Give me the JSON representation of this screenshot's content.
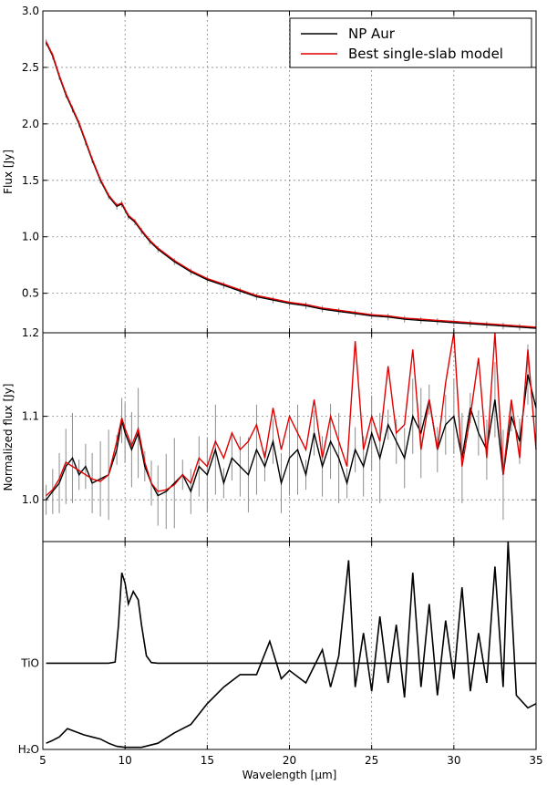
{
  "colors": {
    "observed": "#000000",
    "model": "#e00000",
    "errorbar": "#8c8c8c",
    "grid": "#888888"
  },
  "x_axis": {
    "label": "Wavelength [μm]",
    "ticks": [
      5,
      10,
      15,
      20,
      25,
      30,
      35
    ],
    "range": [
      5,
      35
    ]
  },
  "chart_data": [
    {
      "type": "line",
      "ylabel": "Flux [Jy]",
      "ylim": [
        0.15,
        3.0
      ],
      "yticks": [
        0.5,
        1.0,
        1.5,
        2.0,
        2.5,
        3.0
      ],
      "ytick_labels": [
        "0.5",
        "1.0",
        "1.5",
        "2.0",
        "2.5",
        "3.0"
      ],
      "legend": {
        "placement": "top-right",
        "entries": [
          "NP Aur",
          "Best single-slab model"
        ]
      },
      "grid": true,
      "series": [
        {
          "name": "NP Aur",
          "color": "#000000",
          "x": [
            5.2,
            5.6,
            6.0,
            6.4,
            6.8,
            7.2,
            7.6,
            8.0,
            8.5,
            9.0,
            9.5,
            9.8,
            10.2,
            10.6,
            11.0,
            11.5,
            12,
            13,
            14,
            15,
            16,
            17,
            18,
            19,
            20,
            21,
            22,
            23,
            24,
            25,
            26,
            27,
            28,
            29,
            30,
            31,
            32,
            33,
            34,
            35
          ],
          "y": [
            2.72,
            2.6,
            2.42,
            2.26,
            2.13,
            2.0,
            1.84,
            1.68,
            1.5,
            1.36,
            1.27,
            1.29,
            1.18,
            1.13,
            1.05,
            0.96,
            0.89,
            0.78,
            0.69,
            0.62,
            0.57,
            0.52,
            0.47,
            0.44,
            0.41,
            0.39,
            0.36,
            0.34,
            0.32,
            0.3,
            0.29,
            0.27,
            0.26,
            0.25,
            0.24,
            0.23,
            0.22,
            0.21,
            0.2,
            0.19
          ]
        },
        {
          "name": "Best single-slab model",
          "color": "#e00000",
          "x": [
            5.2,
            5.6,
            6.0,
            6.4,
            6.8,
            7.2,
            7.6,
            8.0,
            8.5,
            9.0,
            9.5,
            9.8,
            10.2,
            10.6,
            11.0,
            11.5,
            12,
            13,
            14,
            15,
            16,
            17,
            18,
            19,
            20,
            21,
            22,
            23,
            24,
            25,
            26,
            27,
            28,
            29,
            30,
            31,
            32,
            33,
            34,
            35
          ],
          "y": [
            2.73,
            2.61,
            2.43,
            2.27,
            2.14,
            2.01,
            1.85,
            1.69,
            1.51,
            1.37,
            1.28,
            1.3,
            1.19,
            1.14,
            1.06,
            0.97,
            0.9,
            0.79,
            0.7,
            0.63,
            0.58,
            0.53,
            0.48,
            0.45,
            0.42,
            0.4,
            0.37,
            0.35,
            0.33,
            0.31,
            0.3,
            0.28,
            0.27,
            0.26,
            0.25,
            0.24,
            0.23,
            0.22,
            0.21,
            0.2
          ]
        }
      ]
    },
    {
      "type": "line",
      "ylabel": "Normalized flux [Jy]",
      "ylim": [
        0.95,
        1.2
      ],
      "yticks": [
        1.0,
        1.1,
        1.2
      ],
      "ytick_labels": [
        "1.0",
        "1.1",
        "1.2"
      ],
      "grid": true,
      "series": [
        {
          "name": "NP Aur",
          "color": "#000000",
          "x": [
            5.2,
            5.6,
            6.0,
            6.4,
            6.8,
            7.2,
            7.6,
            8.0,
            8.5,
            9.0,
            9.5,
            9.8,
            10.0,
            10.4,
            10.8,
            11.2,
            11.6,
            12.0,
            12.5,
            13,
            13.5,
            14,
            14.5,
            15,
            15.5,
            16,
            16.5,
            17,
            17.5,
            18,
            18.5,
            19,
            19.5,
            20,
            20.5,
            21,
            21.5,
            22,
            22.5,
            23,
            23.5,
            24,
            24.5,
            25,
            25.5,
            26,
            26.5,
            27,
            27.5,
            28,
            28.5,
            29,
            29.5,
            30,
            30.5,
            31,
            31.5,
            32,
            32.5,
            33,
            33.5,
            34,
            34.5,
            35
          ],
          "y": [
            1.0,
            1.01,
            1.02,
            1.04,
            1.05,
            1.03,
            1.04,
            1.02,
            1.025,
            1.03,
            1.06,
            1.095,
            1.08,
            1.06,
            1.08,
            1.04,
            1.02,
            1.005,
            1.01,
            1.02,
            1.03,
            1.01,
            1.04,
            1.03,
            1.06,
            1.02,
            1.05,
            1.04,
            1.03,
            1.06,
            1.04,
            1.07,
            1.02,
            1.05,
            1.06,
            1.03,
            1.08,
            1.04,
            1.07,
            1.05,
            1.02,
            1.06,
            1.04,
            1.08,
            1.05,
            1.09,
            1.07,
            1.05,
            1.1,
            1.08,
            1.12,
            1.06,
            1.09,
            1.1,
            1.05,
            1.11,
            1.08,
            1.06,
            1.12,
            1.03,
            1.1,
            1.07,
            1.15,
            1.11
          ]
        },
        {
          "name": "Best single-slab model",
          "color": "#e00000",
          "x": [
            5.2,
            5.6,
            6.0,
            6.4,
            6.8,
            7.2,
            7.6,
            8.0,
            8.5,
            9.0,
            9.5,
            9.8,
            10.0,
            10.4,
            10.8,
            11.2,
            11.6,
            12.0,
            12.5,
            13,
            13.5,
            14,
            14.5,
            15,
            15.5,
            16,
            16.5,
            17,
            17.5,
            18,
            18.5,
            19,
            19.5,
            20,
            20.5,
            21,
            21.5,
            22,
            22.5,
            23,
            23.5,
            24,
            24.5,
            25,
            25.5,
            26,
            26.5,
            27,
            27.5,
            28,
            28.5,
            29,
            29.5,
            30,
            30.5,
            31,
            31.5,
            32,
            32.5,
            33,
            33.5,
            34,
            34.5,
            35
          ],
          "y": [
            1.005,
            1.012,
            1.025,
            1.045,
            1.04,
            1.035,
            1.03,
            1.025,
            1.022,
            1.03,
            1.07,
            1.098,
            1.085,
            1.065,
            1.085,
            1.045,
            1.02,
            1.01,
            1.012,
            1.018,
            1.03,
            1.02,
            1.05,
            1.04,
            1.07,
            1.05,
            1.08,
            1.06,
            1.07,
            1.09,
            1.05,
            1.11,
            1.06,
            1.1,
            1.08,
            1.06,
            1.12,
            1.05,
            1.1,
            1.07,
            1.04,
            1.19,
            1.06,
            1.1,
            1.07,
            1.16,
            1.08,
            1.09,
            1.18,
            1.06,
            1.12,
            1.06,
            1.14,
            1.2,
            1.04,
            1.1,
            1.17,
            1.05,
            1.2,
            1.03,
            1.12,
            1.05,
            1.18,
            1.06
          ]
        }
      ]
    },
    {
      "type": "line",
      "ylabel": "",
      "ylim": [
        0,
        1
      ],
      "ytick_labels": [
        "TiO",
        "H₂O"
      ],
      "grid": true,
      "series": [
        {
          "name": "TiO",
          "color": "#000000",
          "x": [
            5.2,
            8.0,
            9.0,
            9.4,
            9.6,
            9.8,
            10.0,
            10.2,
            10.5,
            10.8,
            11.0,
            11.3,
            11.6,
            12.0,
            35
          ],
          "y": [
            0.415,
            0.415,
            0.415,
            0.42,
            0.6,
            0.85,
            0.8,
            0.7,
            0.76,
            0.72,
            0.6,
            0.45,
            0.418,
            0.415,
            0.415
          ]
        },
        {
          "name": "H₂O",
          "color": "#000000",
          "x": [
            5.2,
            5.5,
            6.0,
            6.5,
            7.0,
            7.5,
            8.0,
            8.5,
            9.0,
            9.5,
            10.0,
            11.0,
            12.0,
            13.0,
            14.0,
            15.0,
            16.0,
            17.0,
            18.0,
            18.8,
            19.5,
            20,
            21,
            22,
            22.5,
            23,
            23.6,
            24,
            24.5,
            25,
            25.5,
            26,
            26.5,
            27,
            27.5,
            28,
            28.5,
            29,
            29.5,
            30,
            30.5,
            31,
            31.5,
            32,
            32.5,
            33,
            33.3,
            33.8,
            34.5,
            35
          ],
          "y": [
            0.03,
            0.04,
            0.06,
            0.1,
            0.085,
            0.07,
            0.06,
            0.05,
            0.03,
            0.015,
            0.01,
            0.01,
            0.03,
            0.08,
            0.12,
            0.22,
            0.3,
            0.36,
            0.36,
            0.52,
            0.34,
            0.38,
            0.32,
            0.48,
            0.3,
            0.45,
            0.91,
            0.3,
            0.56,
            0.28,
            0.64,
            0.32,
            0.6,
            0.25,
            0.85,
            0.3,
            0.7,
            0.26,
            0.62,
            0.34,
            0.78,
            0.28,
            0.56,
            0.32,
            0.88,
            0.3,
            1.0,
            0.26,
            0.2,
            0.22
          ]
        }
      ]
    }
  ]
}
